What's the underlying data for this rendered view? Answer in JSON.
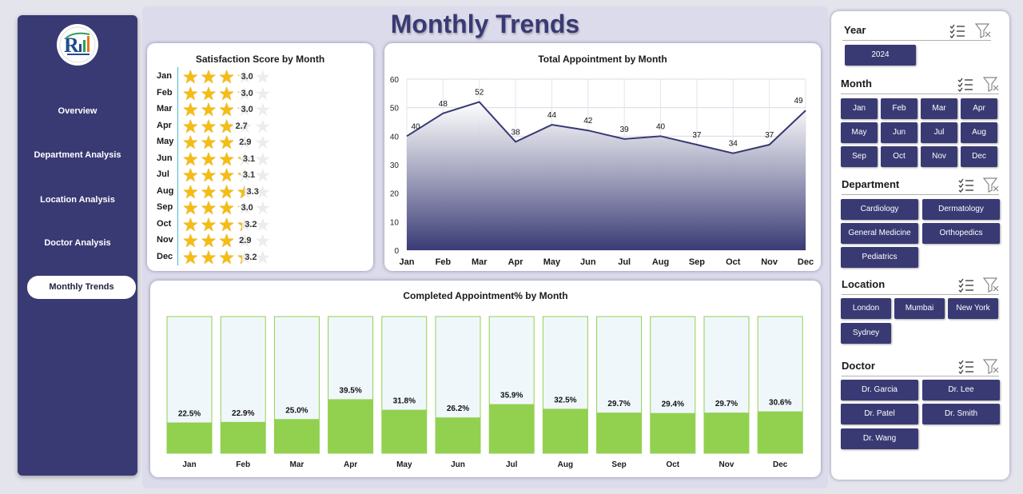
{
  "header": {
    "title": "Monthly Trends"
  },
  "sidebar": {
    "items": [
      {
        "label": "Overview",
        "active": false
      },
      {
        "label": "Department Analysis",
        "active": false
      },
      {
        "label": "Location Analysis",
        "active": false
      },
      {
        "label": "Doctor Analysis",
        "active": false
      },
      {
        "label": "Monthly Trends",
        "active": true
      }
    ]
  },
  "colors": {
    "accent": "#393a74",
    "star": "#f5bd10",
    "bar": "#92d050",
    "bar_bg": "#f0f7fb"
  },
  "chart_data": [
    {
      "type": "bar",
      "title": "Satisfaction Score by Month",
      "categories": [
        "Jan",
        "Feb",
        "Mar",
        "Apr",
        "May",
        "Jun",
        "Jul",
        "Aug",
        "Sep",
        "Oct",
        "Nov",
        "Dec"
      ],
      "values": [
        3.0,
        3.0,
        3.0,
        2.7,
        2.9,
        3.1,
        3.1,
        3.3,
        3.0,
        3.2,
        2.9,
        3.2
      ],
      "value_labels": [
        "3.0",
        "3.0",
        "3.0",
        "2.7",
        "2.9",
        "3.1",
        "3.1",
        "3.3",
        "3.0",
        "3.2",
        "2.9",
        "3.2"
      ],
      "max_stars": 5
    },
    {
      "type": "area",
      "title": "Total Appointment by Month",
      "categories": [
        "Jan",
        "Feb",
        "Mar",
        "Apr",
        "May",
        "Jun",
        "Jul",
        "Aug",
        "Sep",
        "Oct",
        "Nov",
        "Dec"
      ],
      "values": [
        40,
        48,
        52,
        38,
        44,
        42,
        39,
        40,
        37,
        34,
        37,
        49
      ],
      "ylim": [
        0,
        60
      ],
      "yticks": [
        0,
        10,
        20,
        30,
        40,
        50,
        60
      ],
      "grid": true
    },
    {
      "type": "bar",
      "title": "Completed Appointment% by Month",
      "categories": [
        "Jan",
        "Feb",
        "Mar",
        "Apr",
        "May",
        "Jun",
        "Jul",
        "Aug",
        "Sep",
        "Oct",
        "Nov",
        "Dec"
      ],
      "values": [
        22.5,
        22.9,
        25.0,
        39.5,
        31.8,
        26.2,
        35.9,
        32.5,
        29.7,
        29.4,
        29.7,
        30.6
      ],
      "value_labels": [
        "22.5%",
        "22.9%",
        "25.0%",
        "39.5%",
        "31.8%",
        "26.2%",
        "35.9%",
        "32.5%",
        "29.7%",
        "29.4%",
        "29.7%",
        "30.6%"
      ],
      "ylim": [
        0,
        100
      ]
    }
  ],
  "slicers": {
    "year": {
      "title": "Year",
      "options": [
        "2024"
      ]
    },
    "month": {
      "title": "Month",
      "options": [
        "Jan",
        "Feb",
        "Mar",
        "Apr",
        "May",
        "Jun",
        "Jul",
        "Aug",
        "Sep",
        "Oct",
        "Nov",
        "Dec"
      ]
    },
    "department": {
      "title": "Department",
      "options": [
        "Cardiology",
        "Dermatology",
        "General Medicine",
        "Orthopedics",
        "Pediatrics"
      ]
    },
    "location": {
      "title": "Location",
      "options": [
        "London",
        "Mumbai",
        "New York",
        "Sydney"
      ]
    },
    "doctor": {
      "title": "Doctor",
      "options": [
        "Dr. Garcia",
        "Dr. Lee",
        "Dr. Patel",
        "Dr. Smith",
        "Dr. Wang"
      ]
    }
  }
}
